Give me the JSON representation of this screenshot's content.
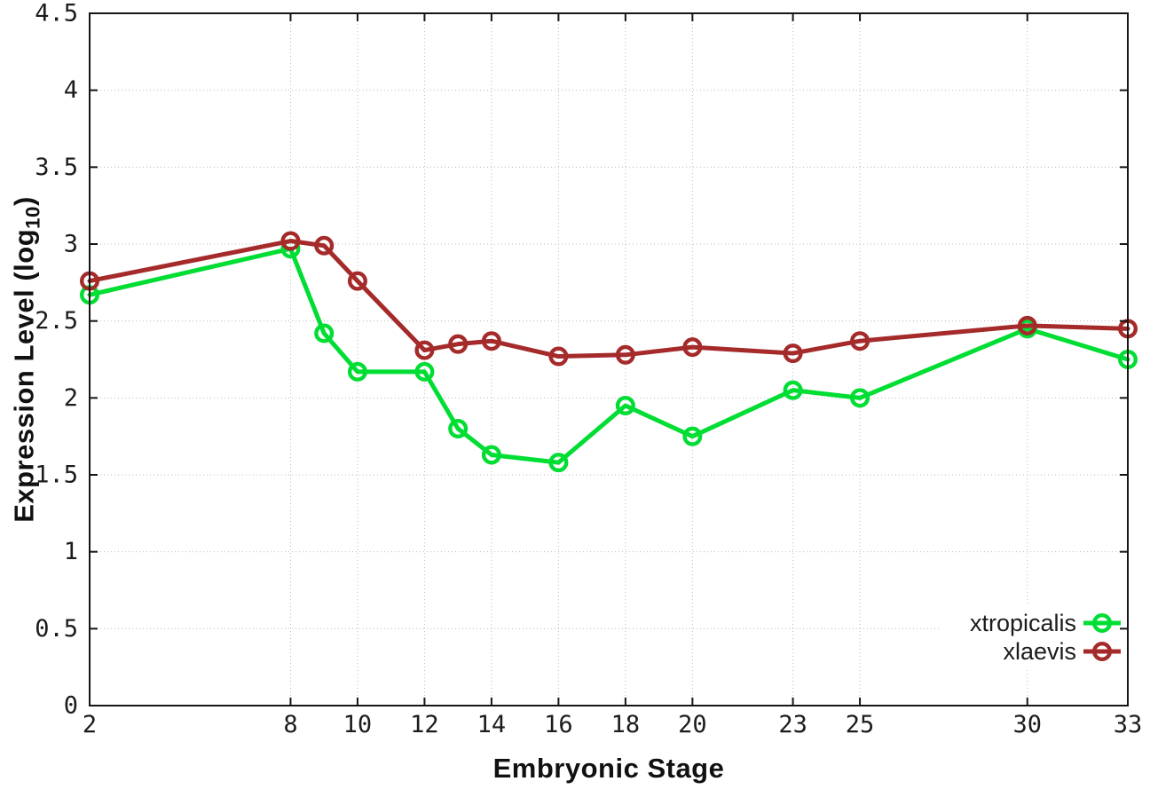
{
  "chart_data": {
    "type": "line",
    "title": "",
    "xlabel": "Embryonic Stage",
    "ylabel": "Expression Level (log10)",
    "ylabel_parts": {
      "main": "Expression Level (log",
      "sub": "10",
      "close": ")"
    },
    "x": [
      2,
      8,
      9,
      10,
      12,
      13,
      14,
      16,
      18,
      20,
      23,
      25,
      30,
      33
    ],
    "series": [
      {
        "name": "xtropicalis",
        "color": "#00dd33",
        "values": [
          2.67,
          2.97,
          2.42,
          2.17,
          2.17,
          1.8,
          1.63,
          1.58,
          1.95,
          1.75,
          2.05,
          2.0,
          2.45,
          2.25
        ]
      },
      {
        "name": "xlaevis",
        "color": "#a52a2a",
        "values": [
          2.76,
          3.02,
          2.99,
          2.76,
          2.31,
          2.35,
          2.37,
          2.27,
          2.28,
          2.33,
          2.29,
          2.37,
          2.47,
          2.45
        ]
      }
    ],
    "xticks": [
      2,
      8,
      10,
      12,
      14,
      16,
      18,
      20,
      23,
      25,
      30,
      33
    ],
    "yticks": [
      0,
      0.5,
      1,
      1.5,
      2,
      2.5,
      3,
      3.5,
      4,
      4.5
    ],
    "xlim": [
      2,
      33
    ],
    "ylim": [
      0,
      4.5
    ],
    "grid": true,
    "legend": {
      "position": "bottom-right",
      "entries": [
        "xtropicalis",
        "xlaevis"
      ]
    }
  },
  "colors": {
    "background": "#ffffff",
    "grid": "#bbbbbb",
    "axis": "#151515",
    "text": "#1c1c1c"
  }
}
